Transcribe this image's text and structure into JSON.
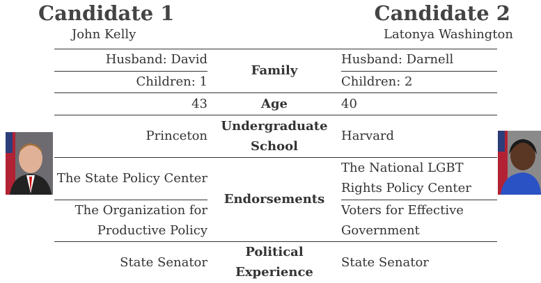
{
  "candidates": [
    {
      "heading": "Candidate 1",
      "name": "John Kelly"
    },
    {
      "heading": "Candidate 2",
      "name": "Latonya Washington"
    }
  ],
  "rows": [
    {
      "label": "Family",
      "left": [
        "Husband: David",
        "Children: 1"
      ],
      "right": [
        "Husband: Darnell",
        "Children: 2"
      ]
    },
    {
      "label": "Age",
      "left": [
        "43"
      ],
      "right": [
        "40"
      ]
    },
    {
      "label": "Undergraduate School",
      "left": [
        "Princeton"
      ],
      "right": [
        "Harvard"
      ]
    },
    {
      "label": "Endorsements",
      "left": [
        "The State Policy Center",
        "The Organization for Productive Policy"
      ],
      "right": [
        "The National LGBT Rights Policy Center",
        "Voters for Effective Government"
      ]
    },
    {
      "label": "Political Experience",
      "left": [
        "State Senator"
      ],
      "right": [
        "State Senator"
      ]
    }
  ]
}
